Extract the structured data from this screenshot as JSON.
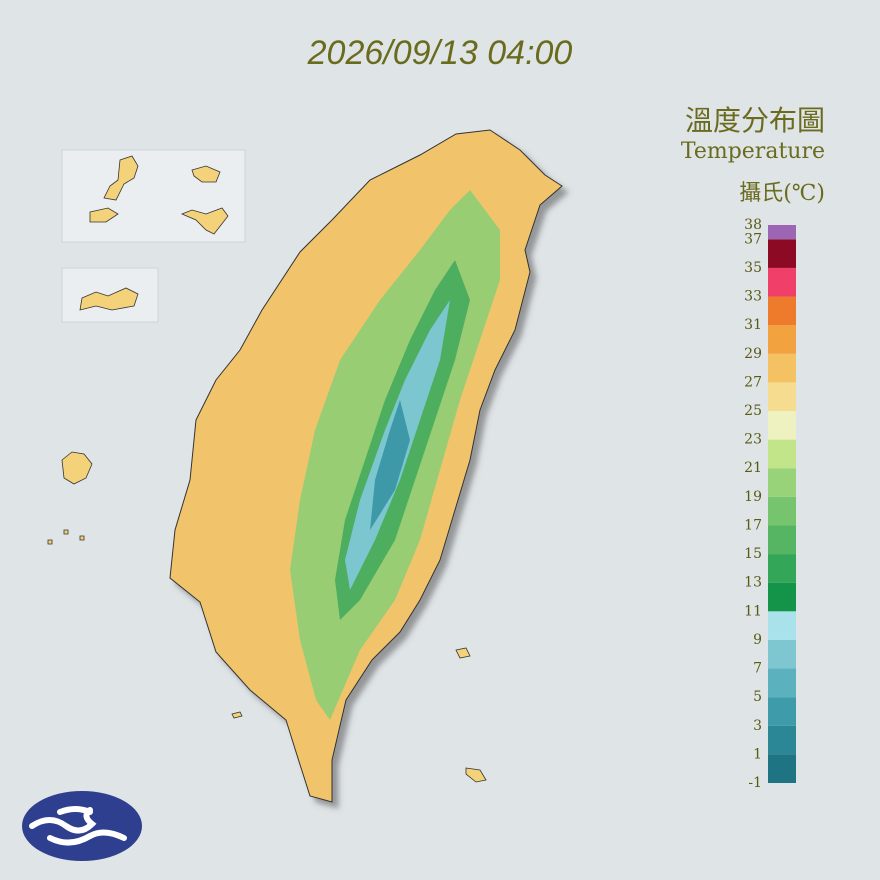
{
  "header": {
    "timestamp": "2026/09/13 04:00"
  },
  "legend": {
    "title": "溫度分布圖",
    "subtitle": "Temperature",
    "unit": "攝氏(℃)",
    "ticks": [
      -1,
      1,
      3,
      5,
      7,
      9,
      11,
      13,
      15,
      17,
      19,
      21,
      23,
      25,
      27,
      29,
      31,
      33,
      35,
      37,
      38
    ],
    "colors": [
      "#1f7483",
      "#2b8795",
      "#3e9caa",
      "#5bb1bd",
      "#7ec7d1",
      "#a9e2ea",
      "#149448",
      "#34a657",
      "#55b562",
      "#76c46d",
      "#98d37a",
      "#c3e58a",
      "#eef2c0",
      "#f6dc8e",
      "#f4c263",
      "#f2a23e",
      "#ee7b2c",
      "#f0406a",
      "#8c0a24",
      "#9c66b4"
    ]
  }
}
